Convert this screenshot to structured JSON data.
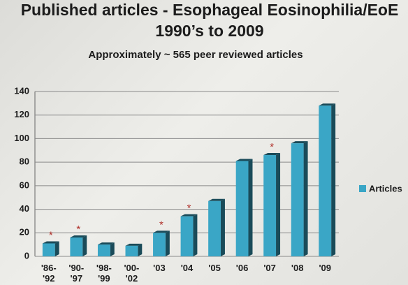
{
  "chart_data": {
    "type": "bar",
    "title": "Published articles - Esophageal Eosinophilia/EoE",
    "subtitle": "1990’s to 2009",
    "annotation": "Approximately ~ 565 peer reviewed articles",
    "categories": [
      "'86- '92",
      "'90- '97",
      "'98- '99",
      "'00- '02",
      "'03",
      "'04",
      "'05",
      "'06",
      "'07",
      "'08",
      "'09"
    ],
    "series": [
      {
        "name": "Articles",
        "color": "#3aa6c6",
        "values": [
          11,
          16,
          10,
          9,
          20,
          34,
          47,
          81,
          86,
          96,
          128
        ]
      }
    ],
    "value_notes": [
      "*",
      "*",
      null,
      null,
      "*",
      "*",
      null,
      null,
      "*",
      null,
      null
    ],
    "ylim": [
      0,
      140
    ],
    "yticks": [
      0,
      20,
      40,
      60,
      80,
      100,
      120,
      140
    ],
    "grid": true,
    "legend": "right"
  }
}
